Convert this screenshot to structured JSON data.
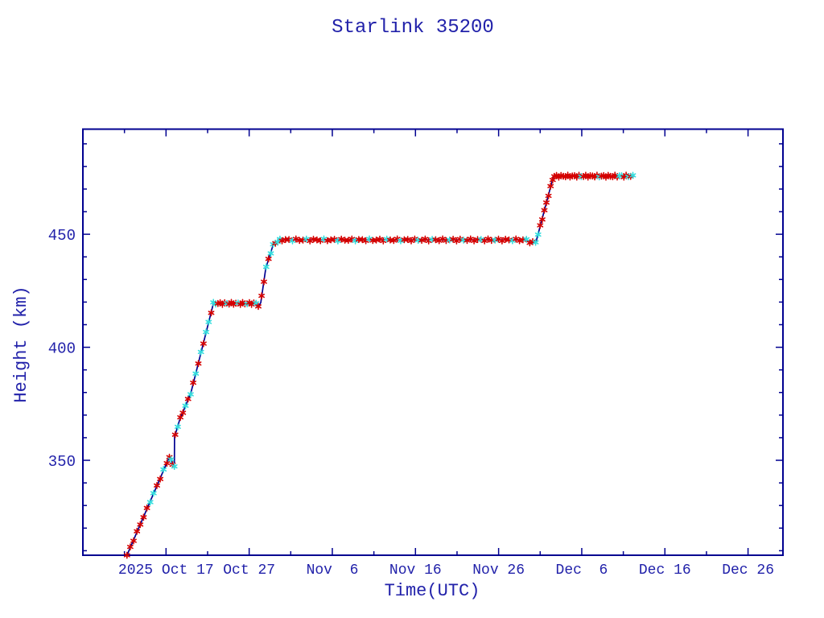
{
  "page": {
    "background": "#ffffff"
  },
  "chart_data": {
    "type": "line",
    "title": "Starlink 35200",
    "xlabel": "Time(UTC)",
    "ylabel": "Height (km)",
    "x_epoch": "2025 Oct 7 = day 0",
    "xlim_days": [
      0,
      84.2
    ],
    "ylim": [
      308,
      496.5
    ],
    "x_major_ticks": [
      {
        "day": 10,
        "label": "2025 Oct 17"
      },
      {
        "day": 20,
        "label": "Oct 27"
      },
      {
        "day": 30,
        "label": "Nov  6"
      },
      {
        "day": 40,
        "label": "Nov 16"
      },
      {
        "day": 50,
        "label": "Nov 26"
      },
      {
        "day": 60,
        "label": "Dec  6"
      },
      {
        "day": 70,
        "label": "Dec 16"
      },
      {
        "day": 80,
        "label": "Dec 26"
      }
    ],
    "x_minor_tick_days": [
      5,
      15,
      25,
      35,
      45,
      55,
      65,
      75
    ],
    "y_major_ticks": [
      350,
      400,
      450
    ],
    "y_minor_ticks": [
      310,
      320,
      330,
      340,
      360,
      370,
      380,
      390,
      410,
      420,
      430,
      440,
      460,
      470,
      480,
      490
    ],
    "colors": {
      "axis": "#000090",
      "line": "#000090",
      "text": "#2222AA",
      "marker_red": "#D40000",
      "marker_cyan": "#33DDDD"
    },
    "line_points_day_km": [
      [
        5.3,
        308.0
      ],
      [
        10.4,
        351.5
      ],
      [
        11.0,
        347.0
      ],
      [
        11.02,
        360.3
      ],
      [
        11.6,
        367.5
      ],
      [
        13.0,
        380.0
      ],
      [
        15.7,
        419.4
      ],
      [
        20.9,
        419.4
      ],
      [
        21.15,
        418.2
      ],
      [
        21.4,
        419.8
      ],
      [
        22.0,
        435.0
      ],
      [
        22.9,
        445.5
      ],
      [
        23.72,
        447.5
      ],
      [
        53.45,
        447.5
      ],
      [
        53.9,
        446.2
      ],
      [
        54.5,
        446.6
      ],
      [
        56.6,
        475.7
      ],
      [
        66.3,
        475.7
      ]
    ],
    "marker_runs": [
      {
        "from": 5.3,
        "to": 10.3,
        "step": 0.4,
        "cyan_idx": [
          7,
          8,
          11
        ]
      },
      {
        "from": 10.4,
        "to": 11.0,
        "step": 0.2,
        "cyan_idx": [
          1,
          3
        ]
      },
      {
        "from": 11.1,
        "to": 15.7,
        "step": 0.31,
        "cyan_idx": [
          1,
          4,
          6,
          8,
          10,
          12,
          13
        ]
      },
      {
        "from": 15.7,
        "to": 21.3,
        "step": 0.27,
        "cyan_idx": [
          0,
          1,
          6,
          11,
          15,
          19
        ]
      },
      {
        "from": 21.5,
        "to": 23.7,
        "step": 0.275,
        "cyan_idx": [
          2,
          4,
          5,
          7,
          8
        ]
      },
      {
        "from": 23.95,
        "to": 53.45,
        "step": 0.42,
        "cyan_idx": [
          3,
          7,
          12,
          16,
          21,
          25,
          30,
          34,
          39,
          43,
          48,
          52,
          57,
          61,
          66,
          70
        ]
      },
      {
        "from": 53.75,
        "to": 54.45,
        "step": 0.35,
        "cyan_idx": [
          2
        ]
      },
      {
        "from": 54.75,
        "to": 56.5,
        "step": 0.25,
        "cyan_idx": [
          0
        ]
      },
      {
        "from": 56.7,
        "to": 66.3,
        "step": 0.27,
        "cyan_idx": [
          12,
          20,
          29,
          30,
          33,
          35
        ]
      }
    ]
  }
}
